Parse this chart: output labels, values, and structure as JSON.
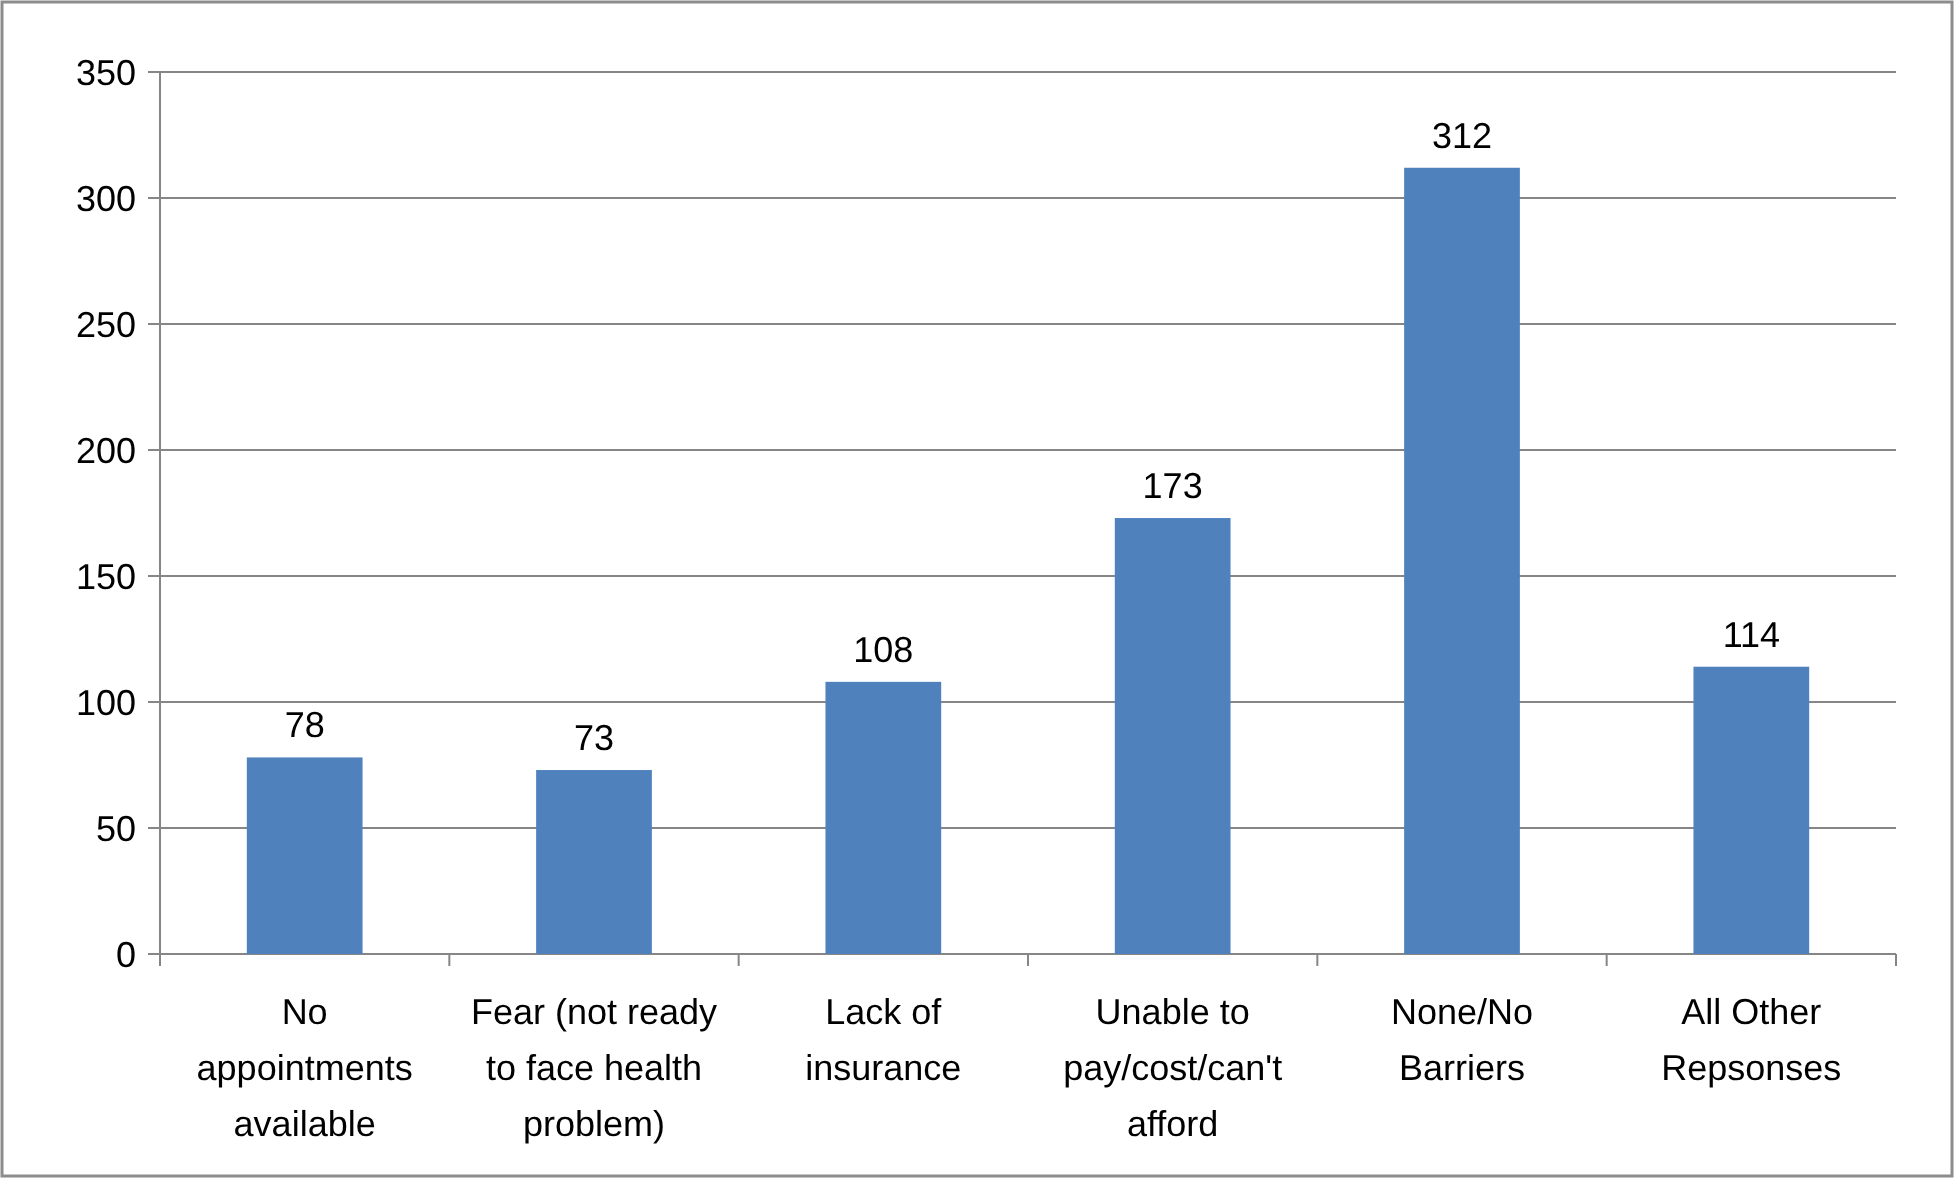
{
  "chart_data": {
    "type": "bar",
    "categories": [
      "No appointments available",
      "Fear (not ready to face health problem)",
      "Lack of insurance",
      "Unable to pay/cost/can't afford",
      "None/No Barriers",
      "All Other Repsonses"
    ],
    "values": [
      78,
      73,
      108,
      173,
      312,
      114
    ],
    "color": "#4f81bd",
    "ylim": [
      0,
      350
    ],
    "yticks": [
      0,
      50,
      100,
      150,
      200,
      250,
      300,
      350
    ],
    "grid": "y",
    "data_labels": true
  }
}
